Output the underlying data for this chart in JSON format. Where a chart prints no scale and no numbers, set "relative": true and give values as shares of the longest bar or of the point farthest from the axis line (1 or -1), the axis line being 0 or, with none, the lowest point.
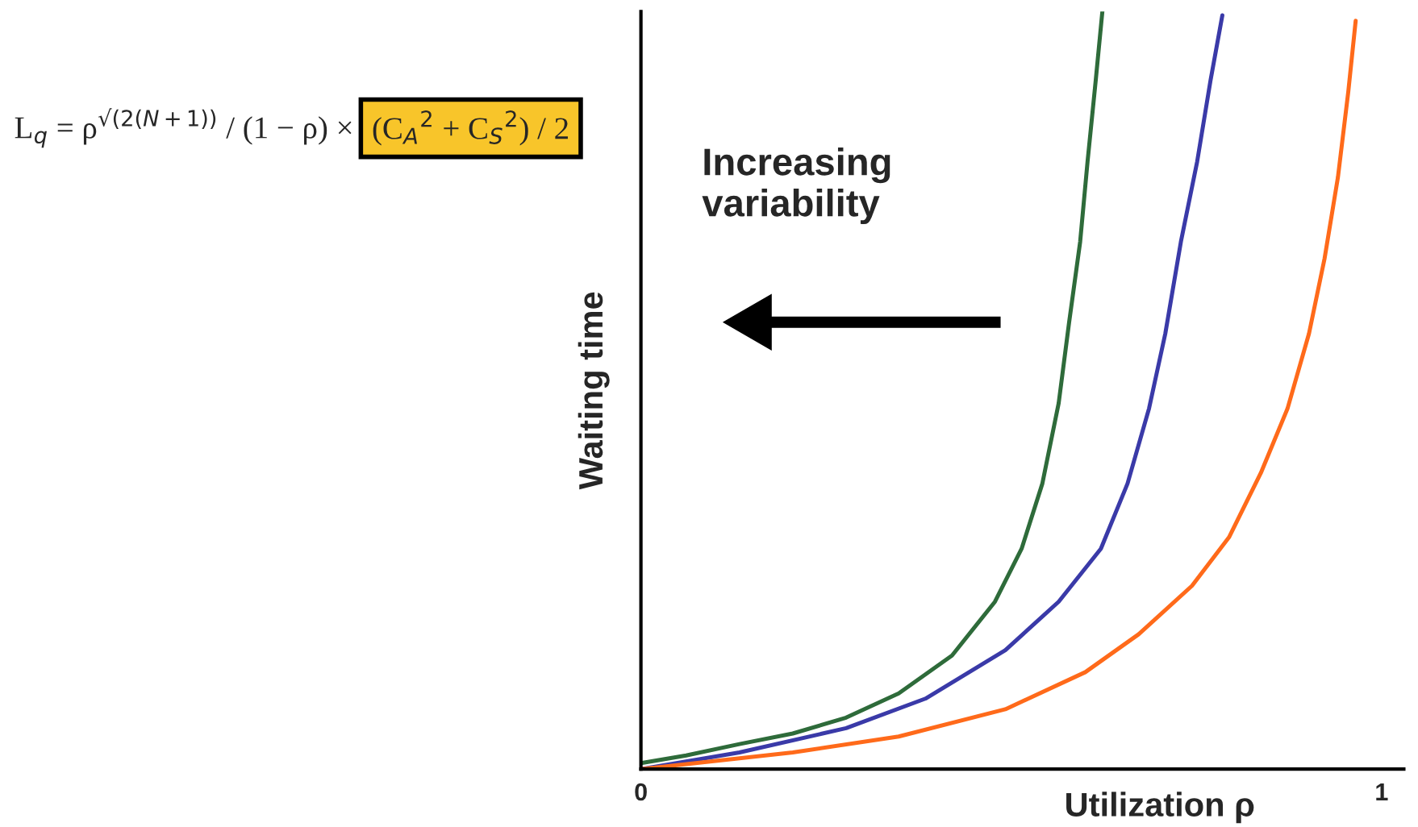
{
  "chart_data": {
    "type": "line",
    "relative": true,
    "xlabel": "Utilization ρ",
    "ylabel": "Waiting time",
    "xlim": [
      0,
      1.03
    ],
    "xticks": [
      0,
      1
    ],
    "annotations": [
      "L$_{q}$ = ρ$^{√(2(N+1))}$ / (1 − ρ) ×",
      "(C$_{A}$$^{2}$ + C$_{S}$$^{2}$) / 2",
      "Increasing\nvariability"
    ],
    "grid": false,
    "legend": false,
    "marker": "none",
    "line_style": "solid",
    "series": [
      {
        "color": "#2e6b3a",
        "x": [
          0,
          0.061,
          0.133,
          0.205,
          0.277,
          0.348,
          0.42,
          0.478,
          0.514,
          0.542,
          0.564,
          0.578,
          0.593,
          0.603,
          0.614,
          0.623
        ],
        "values": [
          0.008,
          0.018,
          0.033,
          0.047,
          0.068,
          0.1,
          0.15,
          0.221,
          0.291,
          0.377,
          0.483,
          0.589,
          0.696,
          0.802,
          0.909,
          1.0
        ]
      },
      {
        "color": "#3a3aa8",
        "x": [
          0,
          0.133,
          0.277,
          0.384,
          0.492,
          0.564,
          0.621,
          0.657,
          0.686,
          0.708,
          0.729,
          0.751,
          0.769,
          0.785
        ],
        "values": [
          0.0,
          0.022,
          0.054,
          0.093,
          0.157,
          0.221,
          0.291,
          0.377,
          0.476,
          0.575,
          0.696,
          0.802,
          0.909,
          0.995
        ]
      },
      {
        "color": "#ff6a1a",
        "x": [
          0,
          0.205,
          0.348,
          0.492,
          0.6,
          0.672,
          0.744,
          0.794,
          0.837,
          0.873,
          0.902,
          0.923,
          0.941,
          0.955,
          0.965
        ],
        "values": [
          0.0,
          0.022,
          0.043,
          0.079,
          0.128,
          0.178,
          0.242,
          0.306,
          0.391,
          0.476,
          0.575,
          0.674,
          0.781,
          0.894,
          0.988
        ]
      }
    ]
  }
}
